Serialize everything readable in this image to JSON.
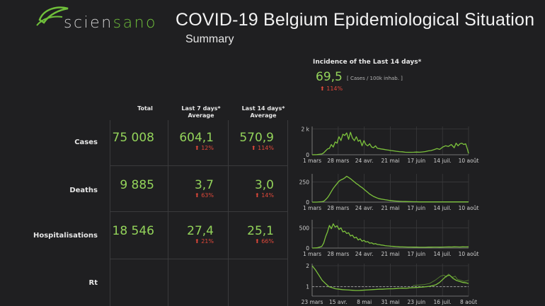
{
  "brand": {
    "name_part1": "scien",
    "name_part2": "sano"
  },
  "header": {
    "title": "COVID-19 Belgium Epidemiological Situation",
    "subtitle": "Summary"
  },
  "incidence": {
    "title": "Incidence of the Last 14 days*",
    "value": "69,5",
    "unit": "[ Cases / 100k inhab. ]",
    "change": "114%"
  },
  "columns": {
    "total": "Total",
    "last7_line1": "Last 7 days*",
    "last7_line2": "Average",
    "last14_line1": "Last 14 days*",
    "last14_line2": "Average"
  },
  "rows": [
    {
      "label": "Cases",
      "total": "75 008",
      "avg7": "604,1",
      "chg7": "12%",
      "avg14": "570,9",
      "chg14": "114%"
    },
    {
      "label": "Deaths",
      "total": "9 885",
      "avg7": "3,7",
      "chg7": "63%",
      "avg14": "3,0",
      "chg14": "14%"
    },
    {
      "label": "Hospitalisations",
      "total": "18 546",
      "avg7": "27,4",
      "chg7": "21%",
      "avg14": "25,1",
      "chg14": "66%"
    },
    {
      "label": "Rt"
    }
  ],
  "colors": {
    "accent": "#93d35a",
    "alert": "#e0483a",
    "background": "#1f1f21",
    "line": "#7cc23c",
    "reference": "#9a9a9a"
  },
  "arrow_icon": "up-arrow-icon",
  "chart_data": [
    {
      "type": "line",
      "series_name": "Cases",
      "x_tick_labels": [
        "1 mars",
        "28 mars",
        "24 avr.",
        "21 mai",
        "17 juin",
        "14 juil.",
        "10 août"
      ],
      "y_tick_labels": [
        "0",
        "2 k"
      ],
      "ylim": [
        0,
        2200
      ],
      "x_range": [
        0,
        163
      ],
      "grid": true,
      "x": [
        0,
        5,
        10,
        12,
        14,
        16,
        18,
        20,
        22,
        24,
        26,
        27,
        28,
        30,
        32,
        34,
        36,
        38,
        40,
        42,
        44,
        46,
        48,
        50,
        52,
        54,
        56,
        58,
        60,
        62,
        64,
        66,
        68,
        70,
        72,
        74,
        76,
        78,
        80,
        82,
        85,
        88,
        91,
        94,
        97,
        100,
        103,
        106,
        109,
        112,
        115,
        118,
        121,
        124,
        127,
        130,
        133,
        136,
        139,
        142,
        145,
        148,
        150,
        152,
        154,
        156,
        158,
        160,
        162,
        163
      ],
      "values": [
        0,
        10,
        60,
        150,
        300,
        450,
        500,
        800,
        600,
        1000,
        900,
        1200,
        1400,
        1100,
        1600,
        1500,
        1700,
        1200,
        1750,
        1300,
        1100,
        1400,
        1050,
        1150,
        700,
        1100,
        800,
        700,
        850,
        600,
        550,
        700,
        500,
        480,
        450,
        430,
        400,
        380,
        360,
        330,
        300,
        270,
        240,
        230,
        200,
        190,
        190,
        200,
        210,
        200,
        220,
        250,
        300,
        330,
        400,
        480,
        420,
        600,
        700,
        650,
        800,
        550,
        900,
        700,
        850,
        900,
        800,
        850,
        400,
        100
      ]
    },
    {
      "type": "line",
      "series_name": "Deaths",
      "x_tick_labels": [
        "1 mars",
        "28 mars",
        "24 avr.",
        "21 mai",
        "17 juin",
        "14 juil.",
        "10 août"
      ],
      "y_tick_labels": [
        "0",
        "250"
      ],
      "ylim": [
        0,
        350
      ],
      "x_range": [
        0,
        163
      ],
      "grid": true,
      "x": [
        0,
        5,
        10,
        12,
        14,
        16,
        18,
        20,
        22,
        24,
        26,
        28,
        30,
        32,
        34,
        36,
        38,
        40,
        42,
        44,
        46,
        48,
        50,
        52,
        54,
        56,
        58,
        60,
        62,
        64,
        66,
        68,
        70,
        72,
        74,
        76,
        78,
        80,
        82,
        85,
        88,
        91,
        94,
        97,
        100,
        103,
        106,
        109,
        112,
        115,
        118,
        121,
        124,
        127,
        130,
        133,
        136,
        139,
        142,
        145,
        148,
        151,
        154,
        157,
        160,
        163
      ],
      "values": [
        0,
        0,
        5,
        10,
        30,
        55,
        90,
        130,
        170,
        200,
        230,
        260,
        275,
        285,
        300,
        320,
        305,
        290,
        270,
        250,
        230,
        215,
        195,
        180,
        160,
        140,
        120,
        100,
        85,
        70,
        60,
        50,
        42,
        38,
        34,
        30,
        26,
        22,
        19,
        15,
        12,
        10,
        8,
        7,
        6,
        5,
        4,
        4,
        3,
        3,
        3,
        3,
        3,
        3,
        3,
        3,
        3,
        3,
        3,
        3,
        3,
        3,
        3,
        3,
        3,
        3
      ]
    },
    {
      "type": "line",
      "series_name": "Hospitalisations",
      "x_tick_labels": [
        "1 mars",
        "28 mars",
        "24 avr.",
        "21 mai",
        "17 juin",
        "14 juil.",
        "10 août"
      ],
      "y_tick_labels": [
        "0",
        "500"
      ],
      "ylim": [
        0,
        700
      ],
      "x_range": [
        0,
        163
      ],
      "grid": true,
      "x": [
        0,
        5,
        10,
        12,
        14,
        16,
        18,
        20,
        22,
        24,
        26,
        28,
        30,
        32,
        34,
        36,
        38,
        40,
        42,
        44,
        46,
        48,
        50,
        52,
        54,
        56,
        58,
        60,
        62,
        64,
        66,
        68,
        70,
        72,
        74,
        76,
        78,
        80,
        82,
        85,
        88,
        91,
        94,
        97,
        100,
        103,
        106,
        109,
        112,
        115,
        118,
        121,
        124,
        127,
        130,
        133,
        136,
        139,
        142,
        145,
        148,
        151,
        154,
        157,
        160,
        163
      ],
      "values": [
        0,
        5,
        40,
        120,
        280,
        400,
        560,
        480,
        600,
        520,
        550,
        460,
        500,
        400,
        420,
        360,
        380,
        300,
        320,
        250,
        270,
        200,
        230,
        170,
        190,
        150,
        160,
        120,
        130,
        100,
        110,
        90,
        85,
        75,
        70,
        60,
        55,
        50,
        45,
        40,
        35,
        30,
        28,
        26,
        25,
        24,
        22,
        22,
        20,
        20,
        20,
        22,
        22,
        24,
        25,
        22,
        24,
        26,
        28,
        26,
        30,
        28,
        27,
        29,
        28,
        30
      ]
    },
    {
      "type": "line",
      "series_name": "Rt",
      "x_tick_labels": [
        "23 mars",
        "15 avr.",
        "8 mai",
        "31 mai",
        "23 juin",
        "16 juil.",
        "8 août"
      ],
      "y_tick_labels": [
        "1",
        "2"
      ],
      "ylim": [
        0.55,
        2.1
      ],
      "x_range": [
        0,
        140
      ],
      "grid": true,
      "reference_line": 1,
      "series": [
        {
          "name": "Rt",
          "x": [
            0,
            3,
            6,
            9,
            12,
            15,
            18,
            21,
            24,
            27,
            30,
            33,
            36,
            39,
            42,
            45,
            48,
            51,
            54,
            57,
            60,
            63,
            66,
            69,
            72,
            75,
            78,
            81,
            84,
            87,
            90,
            93,
            96,
            99,
            102,
            105,
            108,
            111,
            114,
            117,
            120,
            123,
            126,
            129,
            132,
            135,
            138,
            140
          ],
          "values": [
            2.0,
            1.8,
            1.55,
            1.3,
            1.15,
            1.0,
            0.95,
            0.9,
            0.88,
            0.86,
            0.85,
            0.84,
            0.83,
            0.82,
            0.82,
            0.83,
            0.84,
            0.85,
            0.86,
            0.87,
            0.88,
            0.88,
            0.89,
            0.9,
            0.9,
            0.91,
            0.92,
            0.93,
            0.92,
            0.94,
            0.95,
            0.96,
            0.97,
            0.98,
            1.0,
            1.02,
            1.05,
            1.1,
            1.2,
            1.35,
            1.5,
            1.55,
            1.4,
            1.3,
            1.25,
            1.2,
            1.18,
            1.15
          ]
        },
        {
          "name": "Rt-upper",
          "x": [
            90,
            95,
            100,
            105,
            110,
            115,
            118,
            120,
            122,
            124,
            126,
            128,
            130,
            133,
            136,
            140
          ],
          "values": [
            1.05,
            1.08,
            1.1,
            1.15,
            1.3,
            1.5,
            1.55,
            1.45,
            1.6,
            1.5,
            1.45,
            1.5,
            1.35,
            1.3,
            1.25,
            1.3
          ]
        }
      ]
    }
  ]
}
